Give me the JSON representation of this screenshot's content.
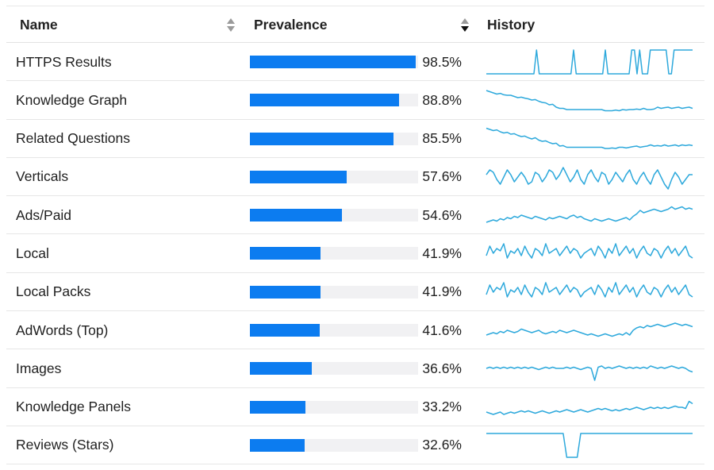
{
  "table": {
    "columns": {
      "name": {
        "label": "Name",
        "sort_icon": "sort-both-icon"
      },
      "prevalence": {
        "label": "Prevalence",
        "sort_icon": "sort-descending-icon"
      },
      "history": {
        "label": "History"
      }
    },
    "colors": {
      "bar_fill": "#0c7cf0",
      "bar_track": "#f1f1f3",
      "sparkline": "#2ea9dc"
    },
    "rows": [
      {
        "name": "HTTPS Results",
        "prevalence_text": "98.5%",
        "prevalence": 98.5,
        "history": [
          0,
          0,
          0,
          0,
          0,
          0,
          0,
          0,
          0,
          0,
          0,
          0,
          0,
          0,
          0,
          0,
          0,
          0,
          0,
          1,
          0,
          0,
          0,
          0,
          0,
          0,
          0,
          0,
          0,
          0,
          0,
          0,
          0,
          1,
          0,
          0,
          0,
          0,
          0,
          0,
          0,
          0,
          0,
          0,
          0,
          1,
          0,
          0,
          0,
          0,
          0,
          0,
          0,
          0,
          0,
          1,
          1,
          0,
          1,
          0,
          0,
          0,
          1,
          1,
          1,
          1,
          1,
          1,
          1,
          0,
          0,
          1,
          1,
          1,
          1,
          1,
          1,
          1,
          1
        ]
      },
      {
        "name": "Knowledge Graph",
        "prevalence_text": "88.8%",
        "prevalence": 88.8,
        "history": [
          0.9,
          0.85,
          0.8,
          0.75,
          0.78,
          0.72,
          0.7,
          0.7,
          0.65,
          0.6,
          0.62,
          0.58,
          0.55,
          0.5,
          0.52,
          0.45,
          0.4,
          0.38,
          0.3,
          0.32,
          0.2,
          0.15,
          0.15,
          0.1,
          0.1,
          0.1,
          0.1,
          0.1,
          0.1,
          0.1,
          0.1,
          0.1,
          0.1,
          0.1,
          0.05,
          0.05,
          0.05,
          0.08,
          0.05,
          0.1,
          0.08,
          0.1,
          0.1,
          0.12,
          0.1,
          0.15,
          0.1,
          0.1,
          0.12,
          0.2,
          0.15,
          0.18,
          0.2,
          0.15,
          0.18,
          0.2,
          0.15,
          0.18,
          0.2,
          0.15
        ]
      },
      {
        "name": "Related Questions",
        "prevalence_text": "85.5%",
        "prevalence": 85.5,
        "history": [
          0.95,
          0.9,
          0.85,
          0.88,
          0.8,
          0.75,
          0.78,
          0.7,
          0.72,
          0.65,
          0.6,
          0.62,
          0.55,
          0.5,
          0.55,
          0.45,
          0.4,
          0.42,
          0.35,
          0.3,
          0.32,
          0.2,
          0.22,
          0.15,
          0.15,
          0.15,
          0.15,
          0.15,
          0.15,
          0.15,
          0.15,
          0.15,
          0.15,
          0.15,
          0.1,
          0.1,
          0.12,
          0.1,
          0.15,
          0.15,
          0.12,
          0.15,
          0.18,
          0.2,
          0.15,
          0.18,
          0.2,
          0.25,
          0.2,
          0.22,
          0.2,
          0.25,
          0.2,
          0.22,
          0.25,
          0.2,
          0.25,
          0.22,
          0.25,
          0.22
        ]
      },
      {
        "name": "Verticals",
        "prevalence_text": "57.6%",
        "prevalence": 57.6,
        "history": [
          0.6,
          0.8,
          0.7,
          0.4,
          0.2,
          0.5,
          0.8,
          0.6,
          0.3,
          0.5,
          0.7,
          0.5,
          0.2,
          0.3,
          0.7,
          0.6,
          0.3,
          0.5,
          0.8,
          0.7,
          0.4,
          0.6,
          0.9,
          0.6,
          0.3,
          0.5,
          0.8,
          0.4,
          0.2,
          0.6,
          0.8,
          0.5,
          0.3,
          0.7,
          0.6,
          0.2,
          0.4,
          0.7,
          0.5,
          0.3,
          0.6,
          0.8,
          0.4,
          0.2,
          0.5,
          0.7,
          0.4,
          0.2,
          0.6,
          0.8,
          0.5,
          0.2,
          0.0,
          0.4,
          0.7,
          0.5,
          0.2,
          0.4,
          0.6,
          0.6
        ]
      },
      {
        "name": "Ads/Paid",
        "prevalence_text": "54.6%",
        "prevalence": 54.6,
        "history": [
          0.2,
          0.25,
          0.3,
          0.25,
          0.35,
          0.3,
          0.4,
          0.35,
          0.45,
          0.4,
          0.5,
          0.45,
          0.4,
          0.35,
          0.45,
          0.4,
          0.35,
          0.3,
          0.4,
          0.35,
          0.4,
          0.45,
          0.4,
          0.35,
          0.45,
          0.5,
          0.4,
          0.45,
          0.35,
          0.3,
          0.25,
          0.35,
          0.3,
          0.25,
          0.3,
          0.35,
          0.3,
          0.25,
          0.3,
          0.35,
          0.4,
          0.3,
          0.45,
          0.55,
          0.7,
          0.6,
          0.65,
          0.7,
          0.75,
          0.7,
          0.65,
          0.7,
          0.75,
          0.85,
          0.75,
          0.8,
          0.85,
          0.75,
          0.8,
          0.75
        ]
      },
      {
        "name": "Local",
        "prevalence_text": "41.9%",
        "prevalence": 41.9,
        "history": [
          0.4,
          0.8,
          0.5,
          0.7,
          0.6,
          0.9,
          0.3,
          0.6,
          0.5,
          0.7,
          0.4,
          0.8,
          0.5,
          0.3,
          0.7,
          0.6,
          0.4,
          0.9,
          0.5,
          0.6,
          0.7,
          0.4,
          0.6,
          0.8,
          0.5,
          0.7,
          0.6,
          0.3,
          0.5,
          0.6,
          0.7,
          0.4,
          0.8,
          0.6,
          0.3,
          0.7,
          0.5,
          0.9,
          0.4,
          0.6,
          0.8,
          0.5,
          0.7,
          0.3,
          0.6,
          0.8,
          0.5,
          0.4,
          0.7,
          0.6,
          0.3,
          0.6,
          0.8,
          0.5,
          0.7,
          0.4,
          0.6,
          0.8,
          0.4,
          0.3
        ]
      },
      {
        "name": "Local Packs",
        "prevalence_text": "41.9%",
        "prevalence": 41.9,
        "history": [
          0.4,
          0.8,
          0.5,
          0.7,
          0.6,
          0.9,
          0.3,
          0.6,
          0.5,
          0.7,
          0.4,
          0.8,
          0.5,
          0.3,
          0.7,
          0.6,
          0.4,
          0.9,
          0.5,
          0.6,
          0.7,
          0.4,
          0.6,
          0.8,
          0.5,
          0.7,
          0.6,
          0.3,
          0.5,
          0.6,
          0.7,
          0.4,
          0.8,
          0.6,
          0.3,
          0.7,
          0.5,
          0.9,
          0.4,
          0.6,
          0.8,
          0.5,
          0.7,
          0.3,
          0.6,
          0.8,
          0.5,
          0.4,
          0.7,
          0.6,
          0.3,
          0.6,
          0.8,
          0.5,
          0.7,
          0.4,
          0.6,
          0.8,
          0.4,
          0.3
        ]
      },
      {
        "name": "AdWords (Top)",
        "prevalence_text": "41.6%",
        "prevalence": 41.6,
        "history": [
          0.3,
          0.35,
          0.4,
          0.35,
          0.45,
          0.4,
          0.5,
          0.45,
          0.4,
          0.45,
          0.55,
          0.5,
          0.45,
          0.4,
          0.45,
          0.5,
          0.4,
          0.35,
          0.4,
          0.45,
          0.4,
          0.5,
          0.45,
          0.4,
          0.45,
          0.5,
          0.45,
          0.4,
          0.35,
          0.3,
          0.35,
          0.3,
          0.25,
          0.3,
          0.35,
          0.3,
          0.25,
          0.3,
          0.35,
          0.3,
          0.4,
          0.3,
          0.5,
          0.6,
          0.65,
          0.6,
          0.7,
          0.65,
          0.7,
          0.75,
          0.7,
          0.65,
          0.7,
          0.75,
          0.8,
          0.75,
          0.7,
          0.75,
          0.7,
          0.65
        ]
      },
      {
        "name": "Images",
        "prevalence_text": "36.6%",
        "prevalence": 36.6,
        "history": [
          0.5,
          0.55,
          0.5,
          0.55,
          0.5,
          0.55,
          0.5,
          0.55,
          0.5,
          0.55,
          0.5,
          0.55,
          0.5,
          0.55,
          0.5,
          0.45,
          0.5,
          0.55,
          0.5,
          0.55,
          0.5,
          0.5,
          0.5,
          0.55,
          0.5,
          0.55,
          0.5,
          0.45,
          0.5,
          0.55,
          0.5,
          0.0,
          0.55,
          0.6,
          0.5,
          0.55,
          0.5,
          0.55,
          0.6,
          0.55,
          0.5,
          0.55,
          0.5,
          0.55,
          0.5,
          0.55,
          0.5,
          0.6,
          0.55,
          0.5,
          0.55,
          0.5,
          0.55,
          0.6,
          0.55,
          0.5,
          0.55,
          0.5,
          0.4,
          0.35
        ]
      },
      {
        "name": "Knowledge Panels",
        "prevalence_text": "33.2%",
        "prevalence": 33.2,
        "history": [
          0.3,
          0.25,
          0.2,
          0.25,
          0.3,
          0.2,
          0.25,
          0.3,
          0.25,
          0.3,
          0.35,
          0.3,
          0.35,
          0.3,
          0.25,
          0.3,
          0.35,
          0.3,
          0.25,
          0.3,
          0.35,
          0.3,
          0.35,
          0.4,
          0.35,
          0.3,
          0.35,
          0.4,
          0.35,
          0.3,
          0.35,
          0.4,
          0.45,
          0.4,
          0.45,
          0.4,
          0.35,
          0.4,
          0.35,
          0.4,
          0.45,
          0.4,
          0.45,
          0.5,
          0.45,
          0.4,
          0.45,
          0.5,
          0.45,
          0.5,
          0.45,
          0.5,
          0.45,
          0.5,
          0.55,
          0.5,
          0.5,
          0.45,
          0.75,
          0.65
        ]
      },
      {
        "name": "Reviews (Stars)",
        "prevalence_text": "32.6%",
        "prevalence": 32.6,
        "history": [
          1,
          1,
          1,
          1,
          1,
          1,
          1,
          1,
          1,
          1,
          1,
          1,
          1,
          1,
          1,
          1,
          1,
          1,
          1,
          1,
          1,
          1,
          1,
          0,
          0,
          0,
          0,
          1,
          1,
          1,
          1,
          1,
          1,
          1,
          1,
          1,
          1,
          1,
          1,
          1,
          1,
          1,
          1,
          1,
          1,
          1,
          1,
          1,
          1,
          1,
          1,
          1,
          1,
          1,
          1,
          1,
          1,
          1,
          1,
          1
        ]
      }
    ]
  }
}
